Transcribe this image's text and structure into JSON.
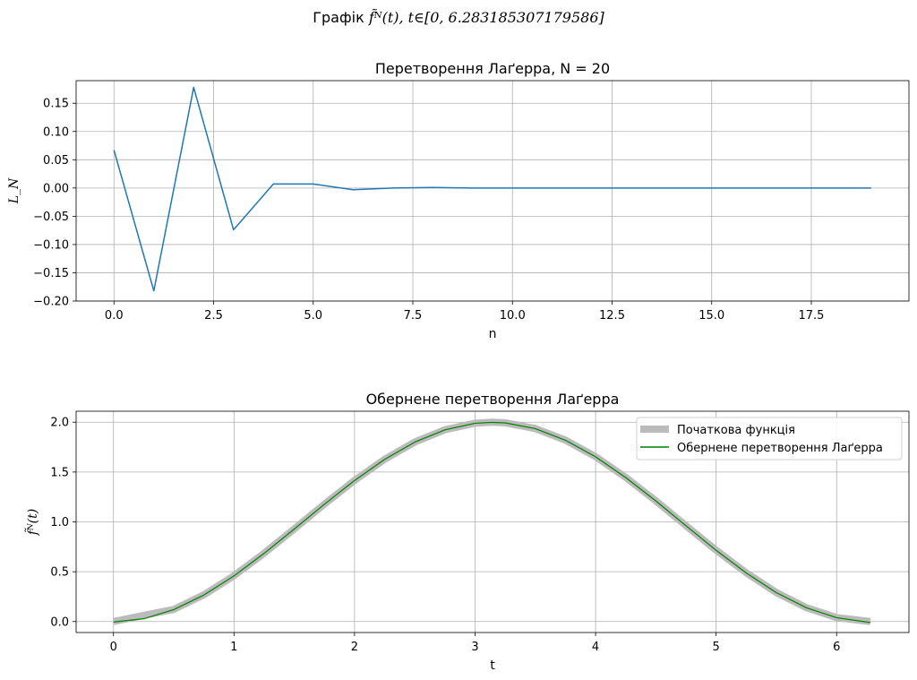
{
  "figure": {
    "suptitle_prefix": "Графік",
    "suptitle_math": "f̃ᴺ(t), t∈[0, 6.283185307179586]"
  },
  "chart_data": [
    {
      "type": "line",
      "title": "Перетворення Лаґерра, N = 20",
      "xlabel": "n",
      "ylabel": "L_N",
      "xlim": [
        -0.95,
        19.95
      ],
      "ylim": [
        -0.2,
        0.19
      ],
      "xticks": [
        "0.0",
        "2.5",
        "5.0",
        "7.5",
        "10.0",
        "12.5",
        "15.0",
        "17.5"
      ],
      "yticks": [
        "−0.20",
        "−0.15",
        "−0.10",
        "−0.05",
        "0.00",
        "0.05",
        "0.10",
        "0.15"
      ],
      "grid": true,
      "series": [
        {
          "color": "#1f77b4",
          "x": [
            0,
            1,
            2,
            3,
            4,
            5,
            6,
            7,
            8,
            9,
            10,
            11,
            12,
            13,
            14,
            15,
            16,
            17,
            18,
            19
          ],
          "y": [
            0.067,
            -0.182,
            0.178,
            -0.074,
            0.007,
            0.007,
            -0.003,
            0.0,
            0.001,
            0.0,
            0.0,
            0.0,
            0.0,
            0.0,
            0.0,
            0.0,
            0.0,
            0.0,
            0.0,
            0.0
          ]
        }
      ]
    },
    {
      "type": "line",
      "title": "Обернене перетворення Лаґерра",
      "xlabel": "t",
      "ylabel": "f̃ᴺ(t)",
      "xlim": [
        -0.31,
        6.6
      ],
      "ylim": [
        -0.11,
        2.11
      ],
      "xticks": [
        "0",
        "1",
        "2",
        "3",
        "4",
        "5",
        "6"
      ],
      "yticks": [
        "0.0",
        "0.5",
        "1.0",
        "1.5",
        "2.0"
      ],
      "grid": true,
      "legend": "top-right",
      "series": [
        {
          "name": "Початкова функція",
          "color": "#bbbbbb",
          "x": [
            0.0,
            0.25,
            0.5,
            0.75,
            1.0,
            1.25,
            1.5,
            1.75,
            2.0,
            2.25,
            2.5,
            2.75,
            3.0,
            3.14,
            3.25,
            3.5,
            3.75,
            4.0,
            4.25,
            4.5,
            4.75,
            5.0,
            5.25,
            5.5,
            5.75,
            6.0,
            6.28
          ],
          "y": [
            0.0,
            0.062,
            0.122,
            0.268,
            0.46,
            0.685,
            0.929,
            1.178,
            1.416,
            1.628,
            1.801,
            1.924,
            1.99,
            2.0,
            1.994,
            1.936,
            1.82,
            1.654,
            1.446,
            1.211,
            0.962,
            0.716,
            0.489,
            0.291,
            0.139,
            0.04,
            0.0
          ]
        },
        {
          "name": "Обернене перетворення Лаґерра",
          "color": "#008000",
          "x": [
            0.0,
            0.25,
            0.5,
            0.75,
            1.0,
            1.25,
            1.5,
            1.75,
            2.0,
            2.25,
            2.5,
            2.75,
            3.0,
            3.14,
            3.25,
            3.5,
            3.75,
            4.0,
            4.25,
            4.5,
            4.75,
            5.0,
            5.25,
            5.5,
            5.75,
            6.0,
            6.28
          ],
          "y": [
            -0.005,
            0.028,
            0.12,
            0.266,
            0.458,
            0.684,
            0.928,
            1.177,
            1.415,
            1.627,
            1.8,
            1.923,
            1.989,
            1.998,
            1.993,
            1.935,
            1.819,
            1.653,
            1.445,
            1.21,
            0.961,
            0.715,
            0.488,
            0.29,
            0.138,
            0.039,
            -0.01
          ]
        }
      ]
    }
  ]
}
